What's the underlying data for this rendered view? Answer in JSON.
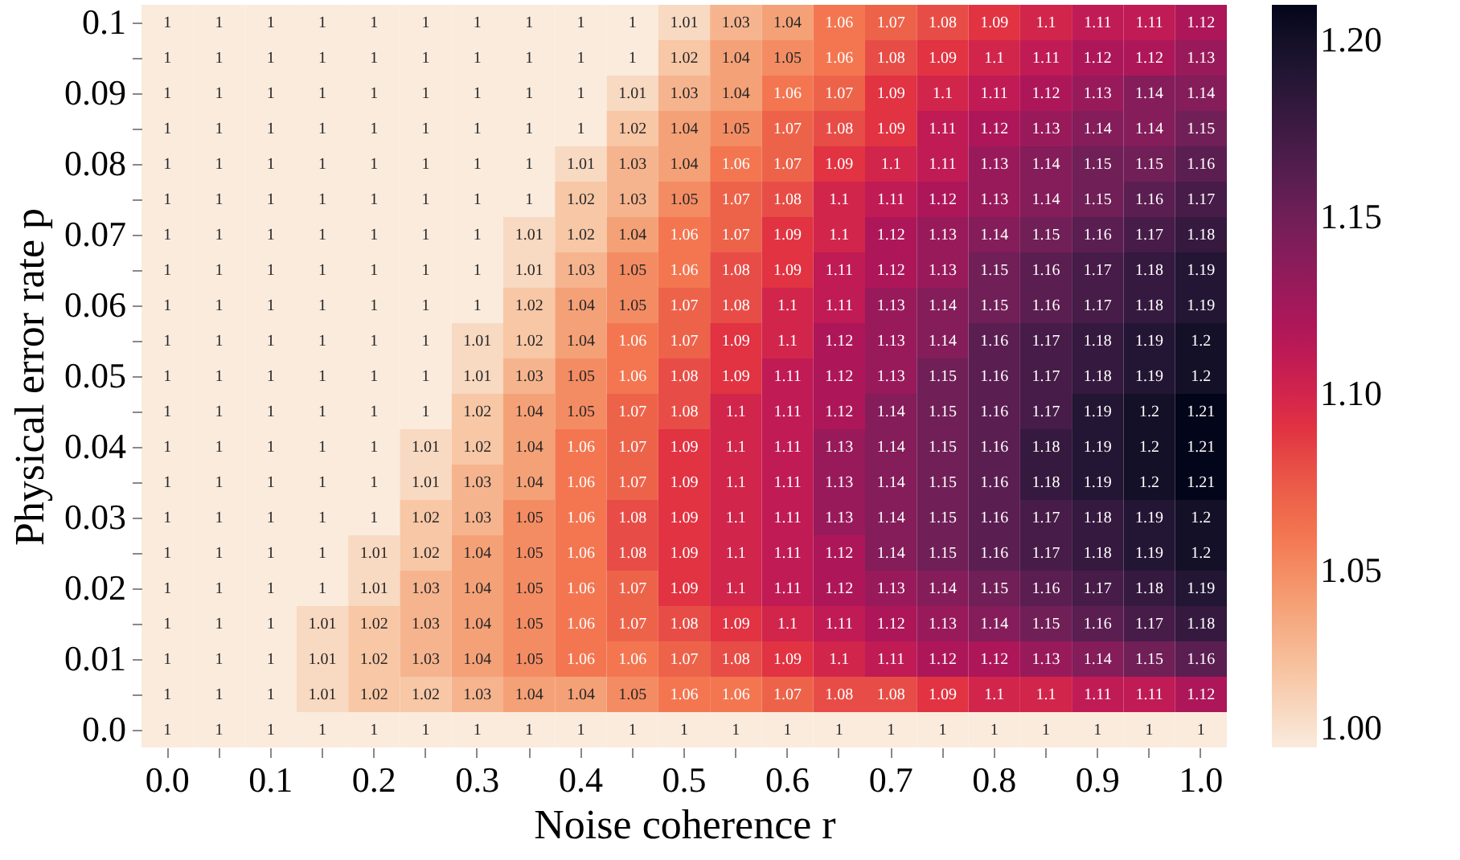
{
  "chart_data": {
    "type": "heatmap",
    "xlabel": "Noise coherence r",
    "ylabel": "Physical error rate p",
    "categories": [
      "0.0",
      null,
      "0.1",
      null,
      "0.2",
      null,
      "0.3",
      null,
      "0.4",
      null,
      "0.5",
      null,
      "0.6",
      null,
      "0.7",
      null,
      "0.8",
      null,
      "0.9",
      null,
      "1.0"
    ],
    "y_categories": [
      "0.1",
      null,
      "0.09",
      null,
      "0.08",
      null,
      "0.07",
      null,
      "0.06",
      null,
      "0.05",
      null,
      "0.04",
      null,
      "0.03",
      null,
      "0.02",
      null,
      "0.01",
      null,
      "0.0"
    ],
    "cells": [
      [
        1,
        1,
        1,
        1,
        1,
        1,
        1,
        1,
        1,
        1,
        1.01,
        1.03,
        1.04,
        1.06,
        1.07,
        1.08,
        1.09,
        1.1,
        1.11,
        1.11,
        1.12
      ],
      [
        1,
        1,
        1,
        1,
        1,
        1,
        1,
        1,
        1,
        1,
        1.02,
        1.04,
        1.05,
        1.06,
        1.08,
        1.09,
        1.1,
        1.11,
        1.12,
        1.12,
        1.13
      ],
      [
        1,
        1,
        1,
        1,
        1,
        1,
        1,
        1,
        1,
        1.01,
        1.03,
        1.04,
        1.06,
        1.07,
        1.09,
        1.1,
        1.11,
        1.12,
        1.13,
        1.14,
        1.14
      ],
      [
        1,
        1,
        1,
        1,
        1,
        1,
        1,
        1,
        1,
        1.02,
        1.04,
        1.05,
        1.07,
        1.08,
        1.09,
        1.11,
        1.12,
        1.13,
        1.14,
        1.14,
        1.15
      ],
      [
        1,
        1,
        1,
        1,
        1,
        1,
        1,
        1,
        1.01,
        1.03,
        1.04,
        1.06,
        1.07,
        1.09,
        1.1,
        1.11,
        1.13,
        1.14,
        1.15,
        1.15,
        1.16
      ],
      [
        1,
        1,
        1,
        1,
        1,
        1,
        1,
        1,
        1.02,
        1.03,
        1.05,
        1.07,
        1.08,
        1.1,
        1.11,
        1.12,
        1.13,
        1.14,
        1.15,
        1.16,
        1.17
      ],
      [
        1,
        1,
        1,
        1,
        1,
        1,
        1,
        1.01,
        1.02,
        1.04,
        1.06,
        1.07,
        1.09,
        1.1,
        1.12,
        1.13,
        1.14,
        1.15,
        1.16,
        1.17,
        1.18
      ],
      [
        1,
        1,
        1,
        1,
        1,
        1,
        1,
        1.01,
        1.03,
        1.05,
        1.06,
        1.08,
        1.09,
        1.11,
        1.12,
        1.13,
        1.15,
        1.16,
        1.17,
        1.18,
        1.19
      ],
      [
        1,
        1,
        1,
        1,
        1,
        1,
        1,
        1.02,
        1.04,
        1.05,
        1.07,
        1.08,
        1.1,
        1.11,
        1.13,
        1.14,
        1.15,
        1.16,
        1.17,
        1.18,
        1.19
      ],
      [
        1,
        1,
        1,
        1,
        1,
        1,
        1.01,
        1.02,
        1.04,
        1.06,
        1.07,
        1.09,
        1.1,
        1.12,
        1.13,
        1.14,
        1.16,
        1.17,
        1.18,
        1.19,
        1.2
      ],
      [
        1,
        1,
        1,
        1,
        1,
        1,
        1.01,
        1.03,
        1.05,
        1.06,
        1.08,
        1.09,
        1.11,
        1.12,
        1.13,
        1.15,
        1.16,
        1.17,
        1.18,
        1.19,
        1.2
      ],
      [
        1,
        1,
        1,
        1,
        1,
        1,
        1.02,
        1.04,
        1.05,
        1.07,
        1.08,
        1.1,
        1.11,
        1.12,
        1.14,
        1.15,
        1.16,
        1.17,
        1.19,
        1.2,
        1.21
      ],
      [
        1,
        1,
        1,
        1,
        1,
        1.01,
        1.02,
        1.04,
        1.06,
        1.07,
        1.09,
        1.1,
        1.11,
        1.13,
        1.14,
        1.15,
        1.16,
        1.18,
        1.19,
        1.2,
        1.21
      ],
      [
        1,
        1,
        1,
        1,
        1,
        1.01,
        1.03,
        1.04,
        1.06,
        1.07,
        1.09,
        1.1,
        1.11,
        1.13,
        1.14,
        1.15,
        1.16,
        1.18,
        1.19,
        1.2,
        1.21
      ],
      [
        1,
        1,
        1,
        1,
        1,
        1.02,
        1.03,
        1.05,
        1.06,
        1.08,
        1.09,
        1.1,
        1.11,
        1.13,
        1.14,
        1.15,
        1.16,
        1.17,
        1.18,
        1.19,
        1.2
      ],
      [
        1,
        1,
        1,
        1,
        1.01,
        1.02,
        1.04,
        1.05,
        1.06,
        1.08,
        1.09,
        1.1,
        1.11,
        1.12,
        1.14,
        1.15,
        1.16,
        1.17,
        1.18,
        1.19,
        1.2
      ],
      [
        1,
        1,
        1,
        1,
        1.01,
        1.03,
        1.04,
        1.05,
        1.06,
        1.07,
        1.09,
        1.1,
        1.11,
        1.12,
        1.13,
        1.14,
        1.15,
        1.16,
        1.17,
        1.18,
        1.19
      ],
      [
        1,
        1,
        1,
        1.01,
        1.02,
        1.03,
        1.04,
        1.05,
        1.06,
        1.07,
        1.08,
        1.09,
        1.1,
        1.11,
        1.12,
        1.13,
        1.14,
        1.15,
        1.16,
        1.17,
        1.18
      ],
      [
        1,
        1,
        1,
        1.01,
        1.02,
        1.03,
        1.04,
        1.05,
        1.06,
        1.06,
        1.07,
        1.08,
        1.09,
        1.1,
        1.11,
        1.12,
        1.12,
        1.13,
        1.14,
        1.15,
        1.16
      ],
      [
        1,
        1,
        1,
        1.01,
        1.02,
        1.02,
        1.03,
        1.04,
        1.04,
        1.05,
        1.06,
        1.06,
        1.07,
        1.08,
        1.08,
        1.09,
        1.1,
        1.1,
        1.11,
        1.11,
        1.12
      ],
      [
        1,
        1,
        1,
        1,
        1,
        1,
        1,
        1,
        1,
        1,
        1,
        1,
        1,
        1,
        1,
        1,
        1,
        1,
        1,
        1,
        1
      ]
    ],
    "clim": [
      1.0,
      1.21
    ],
    "cticks": [
      {
        "value": 1.0,
        "label": "1.00"
      },
      {
        "value": 1.05,
        "label": "1.05"
      },
      {
        "value": 1.1,
        "label": "1.10"
      },
      {
        "value": 1.15,
        "label": "1.15"
      },
      {
        "value": 1.2,
        "label": "1.20"
      }
    ],
    "data_labels": true
  }
}
